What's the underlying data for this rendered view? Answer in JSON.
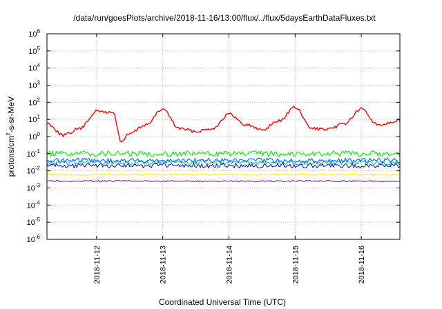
{
  "chart_data": {
    "type": "line",
    "title": "/data/run/goesPlots/archive/2018-11-16/13:00/flux/../flux/5daysEarthDataFluxes.txt",
    "xlabel": "Coordinated Universal Time (UTC)",
    "ylabel_parts": {
      "pre": "protons/cm",
      "sup": "2",
      "post": "-s-sr-MeV"
    },
    "x_range": [
      "2018-11-11T06:00",
      "2018-11-16T14:00"
    ],
    "x_ticks": [
      "2018-11-12",
      "2018-11-13",
      "2018-11-14",
      "2018-11-15",
      "2018-11-16"
    ],
    "y_scale": "log",
    "y_range": [
      1e-06,
      1000000.0
    ],
    "y_ticks": [
      {
        "base": "10",
        "exp": "-6"
      },
      {
        "base": "10",
        "exp": "-5"
      },
      {
        "base": "10",
        "exp": "-4"
      },
      {
        "base": "10",
        "exp": "-3"
      },
      {
        "base": "10",
        "exp": "-2"
      },
      {
        "base": "10",
        "exp": "-1"
      },
      {
        "base": "10",
        "exp": "0"
      },
      {
        "base": "10",
        "exp": "1"
      },
      {
        "base": "10",
        "exp": "2"
      },
      {
        "base": "10",
        "exp": "3"
      },
      {
        "base": "10",
        "exp": "4"
      },
      {
        "base": "10",
        "exp": "5"
      },
      {
        "base": "10",
        "exp": "6"
      }
    ],
    "grid": true,
    "series": [
      {
        "color": "#ff0000",
        "x": [
          "2018-11-11T06:00",
          "2018-11-11T12:00",
          "2018-11-11T18:00",
          "2018-11-12T00:00",
          "2018-11-12T06:00",
          "2018-11-12T09:00",
          "2018-11-12T12:00",
          "2018-11-12T18:00",
          "2018-11-13T00:00",
          "2018-11-13T06:00",
          "2018-11-13T12:00",
          "2018-11-13T18:00",
          "2018-11-14T00:00",
          "2018-11-14T06:00",
          "2018-11-14T12:00",
          "2018-11-14T18:00",
          "2018-11-15T00:00",
          "2018-11-15T06:00",
          "2018-11-15T12:00",
          "2018-11-15T18:00",
          "2018-11-16T00:00",
          "2018-11-16T06:00",
          "2018-11-16T14:00"
        ],
        "y": [
          6,
          1.2,
          3,
          30,
          25,
          0.5,
          1.5,
          5,
          40,
          3,
          2,
          3,
          20,
          5,
          2.5,
          8,
          50,
          3,
          2.5,
          6,
          40,
          5,
          9
        ]
      },
      {
        "color": "#00ee00",
        "x": [
          "2018-11-11T06:00",
          "2018-11-16T14:00"
        ],
        "y": [
          0.1,
          0.1
        ]
      },
      {
        "color": "#00ccaa",
        "x": [
          "2018-11-11T06:00",
          "2018-11-16T14:00"
        ],
        "y": [
          0.03,
          0.03
        ]
      },
      {
        "color": "#0066ff",
        "x": [
          "2018-11-11T06:00",
          "2018-11-16T14:00"
        ],
        "y": [
          0.04,
          0.04
        ]
      },
      {
        "color": "#1a1aa0",
        "x": [
          "2018-11-11T06:00",
          "2018-11-16T14:00"
        ],
        "y": [
          0.02,
          0.02
        ]
      },
      {
        "color": "#ffee00",
        "x": [
          "2018-11-11T06:00",
          "2018-11-16T14:00"
        ],
        "y": [
          0.006,
          0.006
        ]
      },
      {
        "color": "#9b1a9b",
        "x": [
          "2018-11-11T06:00",
          "2018-11-16T14:00"
        ],
        "y": [
          0.0025,
          0.0025
        ]
      }
    ]
  }
}
